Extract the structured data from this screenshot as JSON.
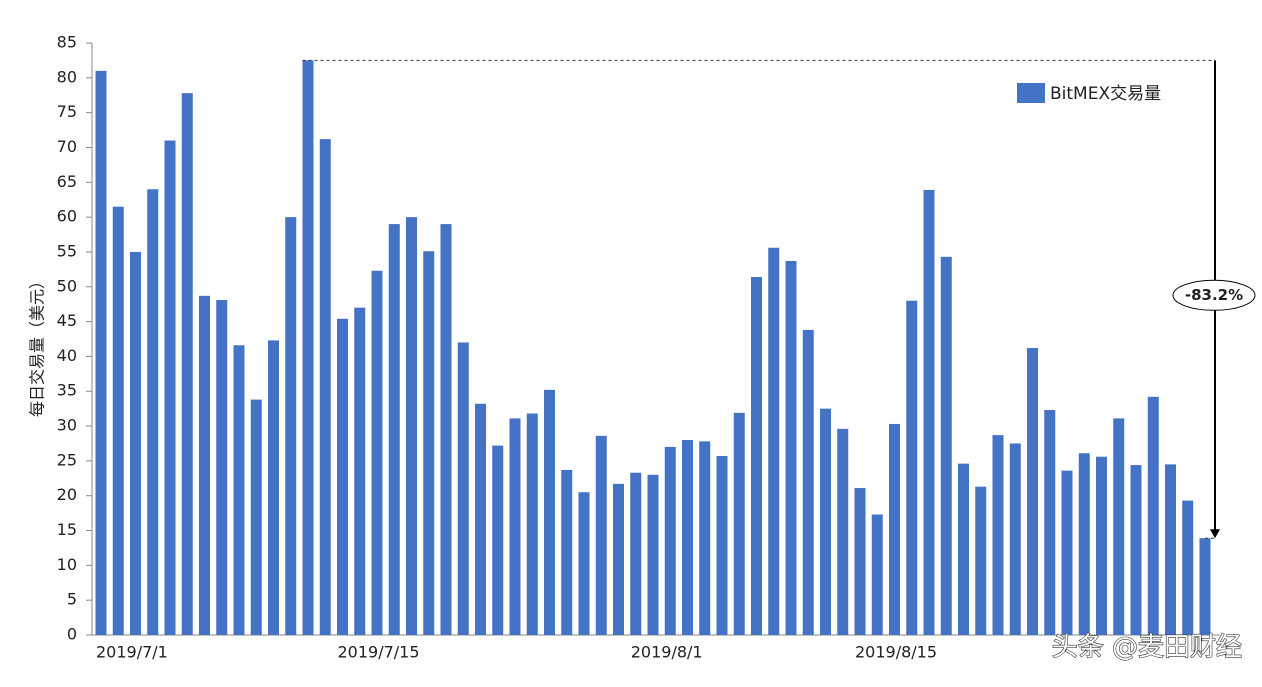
{
  "chart_data": {
    "type": "bar",
    "y_label": "每日交易量（美元）",
    "categories": [
      "2019/7/1",
      null,
      null,
      null,
      null,
      null,
      null,
      null,
      null,
      null,
      null,
      null,
      null,
      null,
      "2019/7/15",
      null,
      null,
      null,
      null,
      null,
      null,
      null,
      null,
      null,
      null,
      null,
      null,
      null,
      null,
      null,
      null,
      "2019/8/1",
      null,
      null,
      null,
      null,
      null,
      null,
      null,
      null,
      null,
      null,
      null,
      null,
      "2019/8/15",
      null,
      null,
      null,
      null,
      null,
      null,
      null,
      null,
      null,
      null,
      null,
      null,
      null,
      null,
      null,
      null,
      null,
      null,
      null,
      null
    ],
    "series": [
      {
        "name": "BitMEX交易量",
        "color": "#4472c4",
        "values": [
          81,
          61.5,
          55,
          64,
          71,
          77.8,
          48.7,
          48.1,
          41.6,
          33.8,
          42.3,
          60,
          82.5,
          71.2,
          45.4,
          47,
          52.3,
          59,
          60,
          55.1,
          59,
          42,
          33.2,
          27.2,
          31.1,
          31.8,
          35.2,
          23.7,
          20.5,
          28.6,
          21.7,
          23.3,
          23,
          27,
          28,
          27.8,
          25.7,
          31.9,
          51.4,
          55.6,
          53.7,
          43.8,
          32.5,
          29.6,
          21.1,
          17.3,
          30.3,
          48,
          63.9,
          54.3,
          24.6,
          21.3,
          28.7,
          27.5,
          41.2,
          32.3,
          23.6,
          26.1,
          25.6,
          31.1,
          24.4,
          34.2,
          24.5,
          19.3,
          13.9
        ]
      }
    ],
    "ylim": [
      0,
      85
    ],
    "yticks": [
      0,
      5,
      10,
      15,
      20,
      25,
      30,
      35,
      40,
      45,
      50,
      55,
      60,
      65,
      70,
      75,
      80,
      85
    ],
    "annotation": "-83.2%",
    "watermark": "头条 @麦田财经",
    "legend_position": "upper right"
  }
}
